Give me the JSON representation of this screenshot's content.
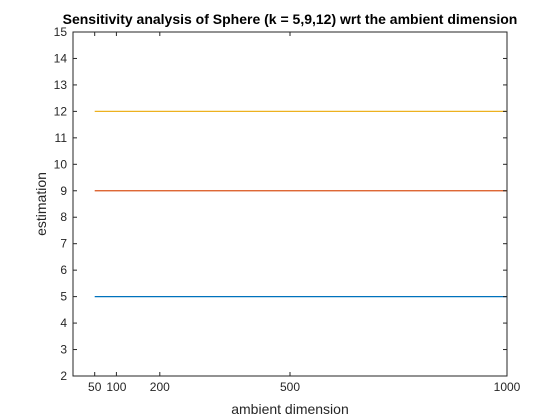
{
  "chart_data": {
    "type": "line",
    "title": "Sensitivity analysis of Sphere (k = 5,9,12) wrt the ambient dimension",
    "xlabel": "ambient dimension",
    "ylabel": "estimation",
    "xlim": [
      0,
      1000
    ],
    "ylim": [
      2,
      15
    ],
    "xticks": [
      50,
      100,
      200,
      500,
      1000
    ],
    "yticks": [
      2,
      3,
      4,
      5,
      6,
      7,
      8,
      9,
      10,
      11,
      12,
      13,
      14,
      15
    ],
    "grid": false,
    "legend": "none",
    "x": [
      50,
      100,
      200,
      500,
      1000
    ],
    "series": [
      {
        "values": [
          5,
          5,
          5,
          5,
          5
        ],
        "color": "#0072BD"
      },
      {
        "values": [
          9,
          9,
          9,
          9,
          9
        ],
        "color": "#D95319"
      },
      {
        "values": [
          12,
          12,
          12,
          12,
          12
        ],
        "color": "#EDB120"
      }
    ]
  }
}
